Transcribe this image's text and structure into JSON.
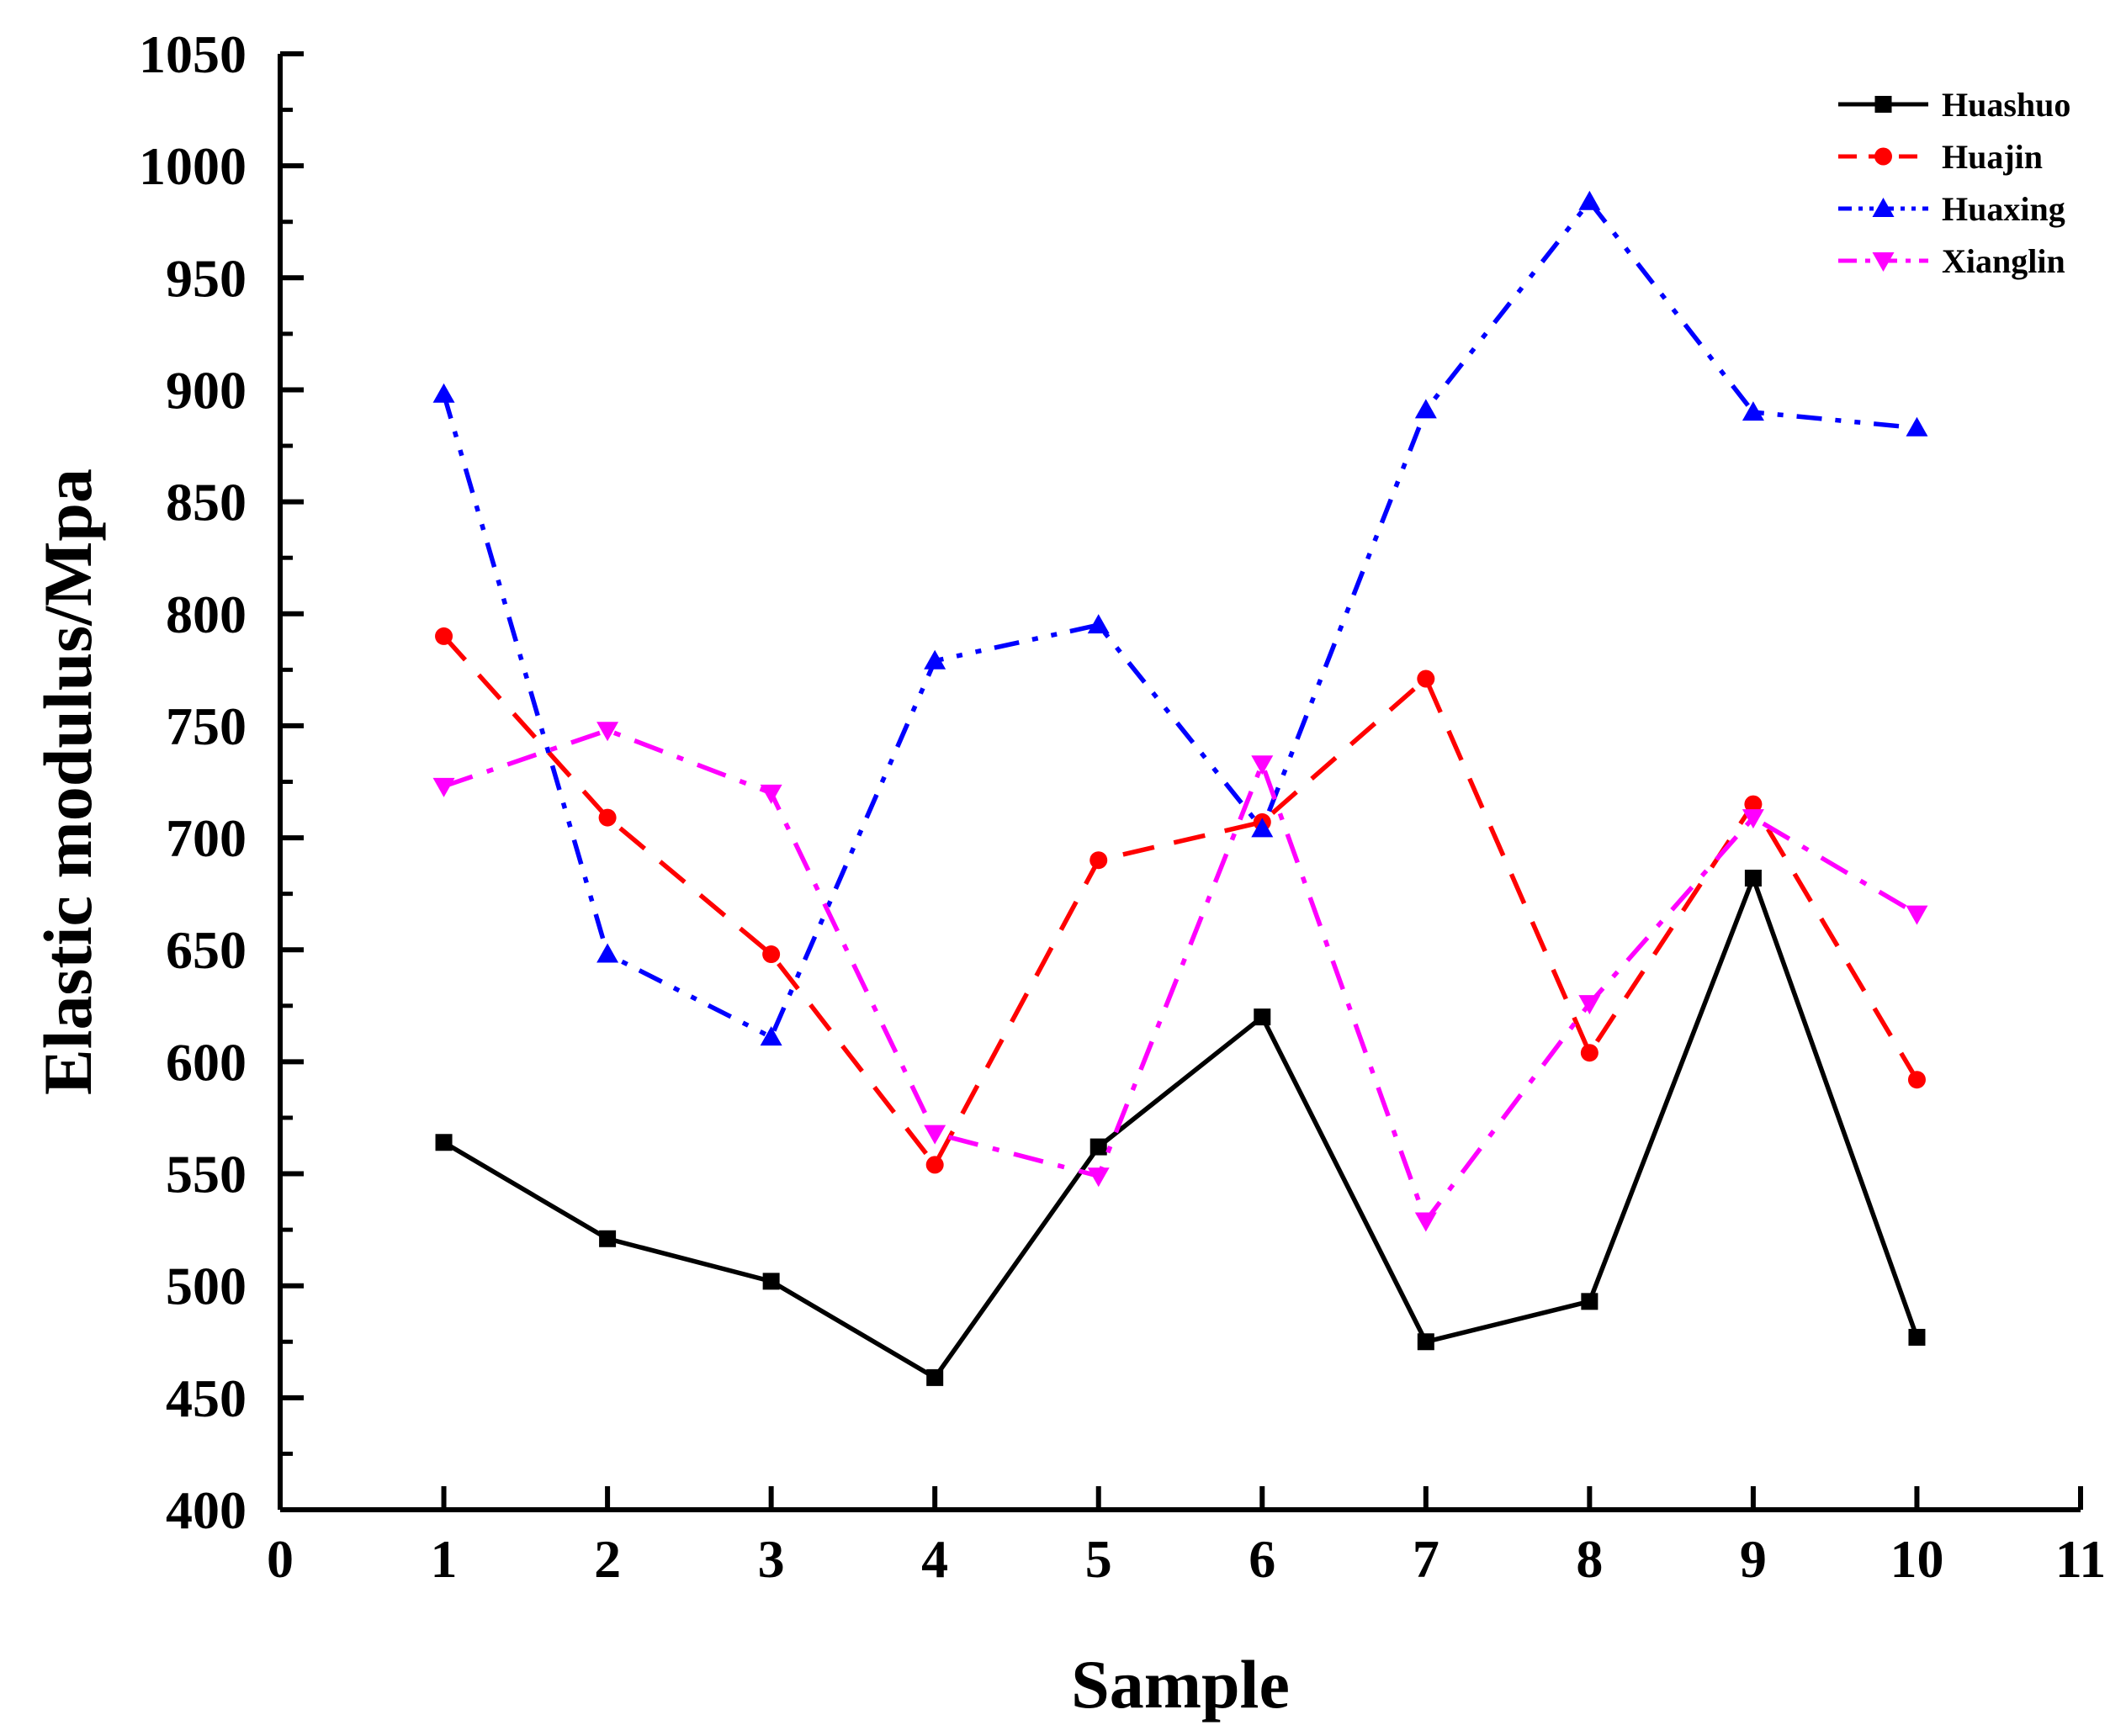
{
  "chart_data": {
    "type": "line",
    "title": "",
    "xlabel": "Sample",
    "ylabel": "Elastic modulus/Mpa",
    "xlim": [
      0,
      11
    ],
    "ylim": [
      400,
      1050
    ],
    "xticks": [
      0,
      1,
      2,
      3,
      4,
      5,
      6,
      7,
      8,
      9,
      10,
      11
    ],
    "yticks": [
      400,
      450,
      500,
      550,
      600,
      650,
      700,
      750,
      800,
      850,
      900,
      950,
      1000,
      1050
    ],
    "grid": false,
    "legend_position": "top-right",
    "x": [
      1,
      2,
      3,
      4,
      5,
      6,
      7,
      8,
      9,
      10
    ],
    "series": [
      {
        "name": "Huashuo",
        "color": "#000000",
        "line_style": "solid",
        "marker": "square",
        "values": [
          564,
          521,
          502,
          459,
          562,
          620,
          475,
          493,
          682,
          477
        ]
      },
      {
        "name": "Huajin",
        "color": "#ff0000",
        "line_style": "dash",
        "marker": "circle",
        "values": [
          790,
          709,
          648,
          554,
          690,
          707,
          771,
          604,
          715,
          592
        ]
      },
      {
        "name": "Huaxing",
        "color": "#0000ff",
        "line_style": "dash-dot-dot",
        "marker": "triangle-up",
        "values": [
          898,
          648,
          611,
          779,
          795,
          704,
          891,
          984,
          890,
          883
        ]
      },
      {
        "name": "Xianglin",
        "color": "#ff00ff",
        "line_style": "dash-dot",
        "marker": "triangle-down",
        "values": [
          723,
          748,
          720,
          568,
          549,
          733,
          529,
          626,
          709,
          666
        ]
      }
    ]
  }
}
